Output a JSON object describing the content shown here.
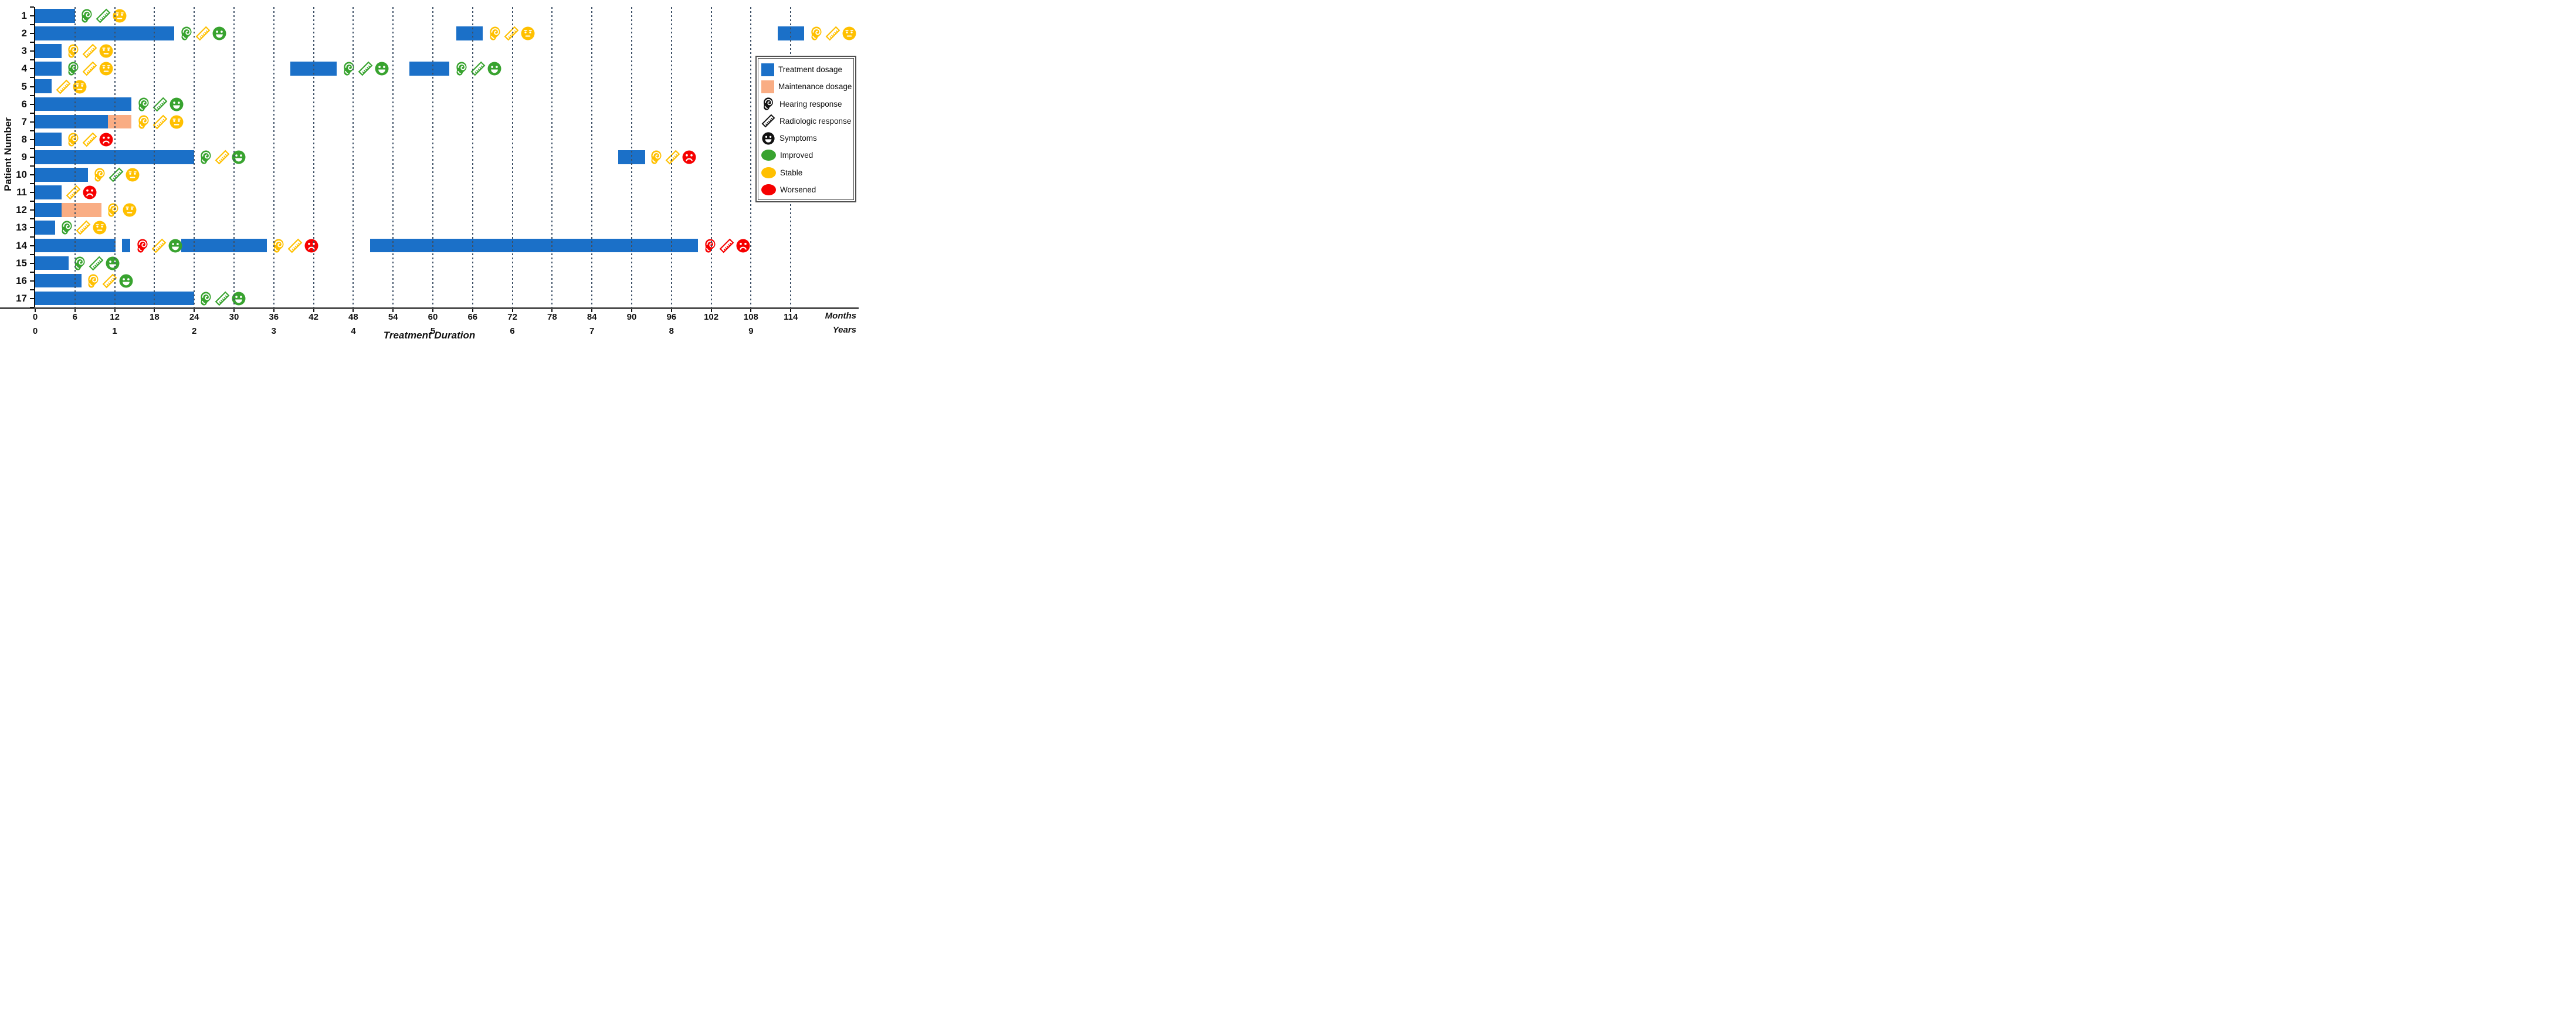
{
  "chart_data": {
    "type": "gantt-bar",
    "title": "",
    "x_axis": {
      "title": "Treatment Duration",
      "unit_primary": "Months",
      "unit_secondary": "Years",
      "month_ticks": [
        0,
        6,
        12,
        18,
        24,
        30,
        36,
        42,
        48,
        54,
        60,
        66,
        72,
        78,
        84,
        90,
        96,
        102,
        108,
        114
      ],
      "year_ticks": [
        {
          "month": 0,
          "label": "0"
        },
        {
          "month": 12,
          "label": "1"
        },
        {
          "month": 24,
          "label": "2"
        },
        {
          "month": 36,
          "label": "3"
        },
        {
          "month": 48,
          "label": "4"
        },
        {
          "month": 60,
          "label": "5"
        },
        {
          "month": 72,
          "label": "6"
        },
        {
          "month": 84,
          "label": "7"
        },
        {
          "month": 96,
          "label": "8"
        },
        {
          "month": 108,
          "label": "9"
        }
      ],
      "grid": "dotted-vertical",
      "max_month": 122
    },
    "y_axis": {
      "title": "Patient Number",
      "categories": [
        "1",
        "2",
        "3",
        "4",
        "5",
        "6",
        "7",
        "8",
        "9",
        "10",
        "11",
        "12",
        "13",
        "14",
        "15",
        "16",
        "17"
      ]
    },
    "colors": {
      "treatment": "#1b70c8",
      "maintenance": "#f9ad84",
      "improved": "#38a32f",
      "stable": "#ffc000",
      "worsened": "#f60000",
      "gridline": "#3d5066",
      "axis_line": "#4a4a4a",
      "legend_icon": "#111111"
    },
    "legend": {
      "position": "right",
      "items": [
        {
          "symbol": "treatment-swatch",
          "label": "Treatment dosage"
        },
        {
          "symbol": "maintenance-swatch",
          "label": "Maintenance dosage"
        },
        {
          "symbol": "ear-icon",
          "label": "Hearing response"
        },
        {
          "symbol": "ruler-icon",
          "label": "Radiologic response"
        },
        {
          "symbol": "face-icon",
          "label": "Symptoms"
        },
        {
          "symbol": "ellipse-improved",
          "label": "Improved"
        },
        {
          "symbol": "ellipse-stable",
          "label": "Stable"
        },
        {
          "symbol": "ellipse-worsened",
          "label": "Worsened"
        }
      ]
    },
    "patients": [
      {
        "label": "1",
        "segments": [
          {
            "kind": "treatment",
            "start": 0,
            "end": 6
          }
        ],
        "events": [
          {
            "at": 6.6,
            "icons": [
              {
                "glyph": "ear",
                "status": "improved"
              },
              {
                "glyph": "ruler",
                "status": "improved"
              },
              {
                "glyph": "face",
                "status": "stable"
              }
            ]
          }
        ]
      },
      {
        "label": "2",
        "segments": [
          {
            "kind": "treatment",
            "start": 0,
            "end": 21
          },
          {
            "kind": "treatment",
            "start": 63.5,
            "end": 67.5
          },
          {
            "kind": "treatment",
            "start": 112,
            "end": 116
          }
        ],
        "events": [
          {
            "at": 21.7,
            "icons": [
              {
                "glyph": "ear",
                "status": "improved"
              },
              {
                "glyph": "ruler",
                "status": "stable"
              },
              {
                "glyph": "face",
                "status": "improved"
              }
            ]
          },
          {
            "at": 68.2,
            "icons": [
              {
                "glyph": "ear",
                "status": "stable"
              },
              {
                "glyph": "ruler",
                "status": "stable"
              },
              {
                "glyph": "face",
                "status": "stable"
              }
            ]
          },
          {
            "at": 116.7,
            "icons": [
              {
                "glyph": "ear",
                "status": "stable"
              },
              {
                "glyph": "ruler",
                "status": "stable"
              },
              {
                "glyph": "face",
                "status": "stable"
              }
            ]
          }
        ]
      },
      {
        "label": "3",
        "segments": [
          {
            "kind": "treatment",
            "start": 0,
            "end": 4
          }
        ],
        "events": [
          {
            "at": 4.6,
            "icons": [
              {
                "glyph": "ear",
                "status": "stable"
              },
              {
                "glyph": "ruler",
                "status": "stable"
              },
              {
                "glyph": "face",
                "status": "stable"
              }
            ]
          }
        ]
      },
      {
        "label": "4",
        "segments": [
          {
            "kind": "treatment",
            "start": 0,
            "end": 4
          },
          {
            "kind": "treatment",
            "start": 38.5,
            "end": 45.5
          },
          {
            "kind": "treatment",
            "start": 56.5,
            "end": 62.5
          }
        ],
        "events": [
          {
            "at": 4.6,
            "icons": [
              {
                "glyph": "ear",
                "status": "improved"
              },
              {
                "glyph": "ruler",
                "status": "stable"
              },
              {
                "glyph": "face",
                "status": "stable"
              }
            ]
          },
          {
            "at": 46.2,
            "icons": [
              {
                "glyph": "ear",
                "status": "improved"
              },
              {
                "glyph": "ruler",
                "status": "improved"
              },
              {
                "glyph": "face",
                "status": "improved"
              }
            ]
          },
          {
            "at": 63.2,
            "icons": [
              {
                "glyph": "ear",
                "status": "improved"
              },
              {
                "glyph": "ruler",
                "status": "improved"
              },
              {
                "glyph": "face",
                "status": "improved"
              }
            ]
          }
        ]
      },
      {
        "label": "5",
        "segments": [
          {
            "kind": "treatment",
            "start": 0,
            "end": 2.5
          }
        ],
        "events": [
          {
            "at": 3.1,
            "icons": [
              {
                "glyph": "ruler",
                "status": "stable"
              },
              {
                "glyph": "face",
                "status": "stable"
              }
            ]
          }
        ]
      },
      {
        "label": "6",
        "segments": [
          {
            "kind": "treatment",
            "start": 0,
            "end": 14.5
          }
        ],
        "events": [
          {
            "at": 15.2,
            "icons": [
              {
                "glyph": "ear",
                "status": "improved"
              },
              {
                "glyph": "ruler",
                "status": "improved"
              },
              {
                "glyph": "face",
                "status": "improved"
              }
            ]
          }
        ]
      },
      {
        "label": "7",
        "segments": [
          {
            "kind": "treatment",
            "start": 0,
            "end": 11
          },
          {
            "kind": "maintenance",
            "start": 11,
            "end": 14.5
          }
        ],
        "events": [
          {
            "at": 15.2,
            "icons": [
              {
                "glyph": "ear",
                "status": "stable"
              },
              {
                "glyph": "ruler",
                "status": "stable"
              },
              {
                "glyph": "face",
                "status": "stable"
              }
            ]
          }
        ]
      },
      {
        "label": "8",
        "segments": [
          {
            "kind": "treatment",
            "start": 0,
            "end": 4
          }
        ],
        "events": [
          {
            "at": 4.6,
            "icons": [
              {
                "glyph": "ear",
                "status": "stable"
              },
              {
                "glyph": "ruler",
                "status": "stable"
              },
              {
                "glyph": "face",
                "status": "worsened"
              }
            ]
          }
        ]
      },
      {
        "label": "9",
        "segments": [
          {
            "kind": "treatment",
            "start": 0,
            "end": 24
          },
          {
            "kind": "treatment",
            "start": 88,
            "end": 92
          }
        ],
        "events": [
          {
            "at": 24.6,
            "icons": [
              {
                "glyph": "ear",
                "status": "improved"
              },
              {
                "glyph": "ruler",
                "status": "stable"
              },
              {
                "glyph": "face",
                "status": "improved"
              }
            ]
          },
          {
            "at": 92.6,
            "icons": [
              {
                "glyph": "ear",
                "status": "stable"
              },
              {
                "glyph": "ruler",
                "status": "stable"
              },
              {
                "glyph": "face",
                "status": "worsened"
              }
            ]
          }
        ]
      },
      {
        "label": "10",
        "segments": [
          {
            "kind": "treatment",
            "start": 0,
            "end": 8
          }
        ],
        "events": [
          {
            "at": 8.6,
            "icons": [
              {
                "glyph": "ear",
                "status": "stable"
              },
              {
                "glyph": "ruler",
                "status": "improved"
              },
              {
                "glyph": "face",
                "status": "stable"
              }
            ]
          }
        ]
      },
      {
        "label": "11",
        "segments": [
          {
            "kind": "treatment",
            "start": 0,
            "end": 4
          }
        ],
        "events": [
          {
            "at": 4.6,
            "icons": [
              {
                "glyph": "ruler",
                "status": "stable"
              },
              {
                "glyph": "face",
                "status": "worsened"
              }
            ]
          }
        ]
      },
      {
        "label": "12",
        "segments": [
          {
            "kind": "treatment",
            "start": 0,
            "end": 4
          },
          {
            "kind": "maintenance",
            "start": 4,
            "end": 10
          }
        ],
        "events": [
          {
            "at": 10.6,
            "icons": [
              {
                "glyph": "ear",
                "status": "stable"
              },
              {
                "glyph": "face",
                "status": "stable"
              }
            ]
          }
        ]
      },
      {
        "label": "13",
        "segments": [
          {
            "kind": "treatment",
            "start": 0,
            "end": 3
          }
        ],
        "events": [
          {
            "at": 3.6,
            "icons": [
              {
                "glyph": "ear",
                "status": "improved"
              },
              {
                "glyph": "ruler",
                "status": "stable"
              },
              {
                "glyph": "face",
                "status": "stable"
              }
            ]
          }
        ]
      },
      {
        "label": "14",
        "segments": [
          {
            "kind": "treatment",
            "start": 0,
            "end": 12.1
          },
          {
            "kind": "treatment",
            "start": 13.1,
            "end": 14.3
          },
          {
            "kind": "treatment",
            "start": 22,
            "end": 35
          },
          {
            "kind": "treatment",
            "start": 50.5,
            "end": 100
          }
        ],
        "events": [
          {
            "at": 15.0,
            "icons": [
              {
                "glyph": "ear",
                "status": "worsened"
              },
              {
                "glyph": "ruler",
                "status": "stable"
              },
              {
                "glyph": "face",
                "status": "improved"
              }
            ]
          },
          {
            "at": 35.6,
            "icons": [
              {
                "glyph": "ear",
                "status": "stable"
              },
              {
                "glyph": "ruler",
                "status": "stable"
              },
              {
                "glyph": "face",
                "status": "worsened"
              }
            ]
          },
          {
            "at": 100.7,
            "icons": [
              {
                "glyph": "ear",
                "status": "worsened"
              },
              {
                "glyph": "ruler",
                "status": "worsened"
              },
              {
                "glyph": "face",
                "status": "worsened"
              }
            ]
          }
        ]
      },
      {
        "label": "15",
        "segments": [
          {
            "kind": "treatment",
            "start": 0,
            "end": 5
          }
        ],
        "events": [
          {
            "at": 5.6,
            "icons": [
              {
                "glyph": "ear",
                "status": "improved"
              },
              {
                "glyph": "ruler",
                "status": "improved"
              },
              {
                "glyph": "face",
                "status": "improved"
              }
            ]
          }
        ]
      },
      {
        "label": "16",
        "segments": [
          {
            "kind": "treatment",
            "start": 0,
            "end": 7
          }
        ],
        "events": [
          {
            "at": 7.6,
            "icons": [
              {
                "glyph": "ear",
                "status": "stable"
              },
              {
                "glyph": "ruler",
                "status": "stable"
              },
              {
                "glyph": "face",
                "status": "improved"
              }
            ]
          }
        ]
      },
      {
        "label": "17",
        "segments": [
          {
            "kind": "treatment",
            "start": 0,
            "end": 24
          }
        ],
        "events": [
          {
            "at": 24.6,
            "icons": [
              {
                "glyph": "ear",
                "status": "improved"
              },
              {
                "glyph": "ruler",
                "status": "improved"
              },
              {
                "glyph": "face",
                "status": "improved"
              }
            ]
          }
        ]
      }
    ]
  }
}
